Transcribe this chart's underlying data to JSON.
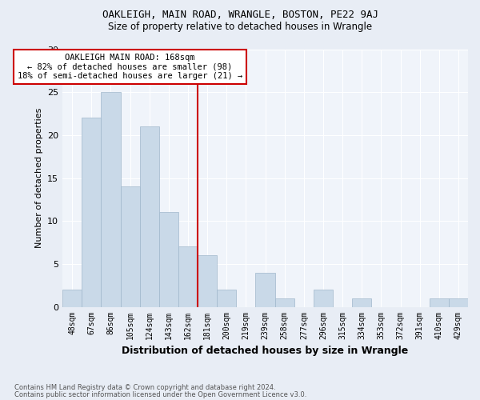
{
  "title": "OAKLEIGH, MAIN ROAD, WRANGLE, BOSTON, PE22 9AJ",
  "subtitle": "Size of property relative to detached houses in Wrangle",
  "xlabel": "Distribution of detached houses by size in Wrangle",
  "ylabel": "Number of detached properties",
  "footnote1": "Contains HM Land Registry data © Crown copyright and database right 2024.",
  "footnote2": "Contains public sector information licensed under the Open Government Licence v3.0.",
  "categories": [
    "48sqm",
    "67sqm",
    "86sqm",
    "105sqm",
    "124sqm",
    "143sqm",
    "162sqm",
    "181sqm",
    "200sqm",
    "219sqm",
    "239sqm",
    "258sqm",
    "277sqm",
    "296sqm",
    "315sqm",
    "334sqm",
    "353sqm",
    "372sqm",
    "391sqm",
    "410sqm",
    "429sqm"
  ],
  "values": [
    2,
    22,
    25,
    14,
    21,
    11,
    7,
    6,
    2,
    0,
    4,
    1,
    0,
    2,
    0,
    1,
    0,
    0,
    0,
    1,
    1
  ],
  "bar_color": "#c9d9e8",
  "bar_edge_color": "#a0b8cc",
  "vline_x_index": 6.5,
  "vline_color": "#cc0000",
  "annotation_text": "OAKLEIGH MAIN ROAD: 168sqm\n← 82% of detached houses are smaller (98)\n18% of semi-detached houses are larger (21) →",
  "annotation_box_color": "#ffffff",
  "annotation_box_edge_color": "#cc0000",
  "ylim": [
    0,
    30
  ],
  "background_color": "#e8edf5",
  "plot_background_color": "#f0f4fa"
}
